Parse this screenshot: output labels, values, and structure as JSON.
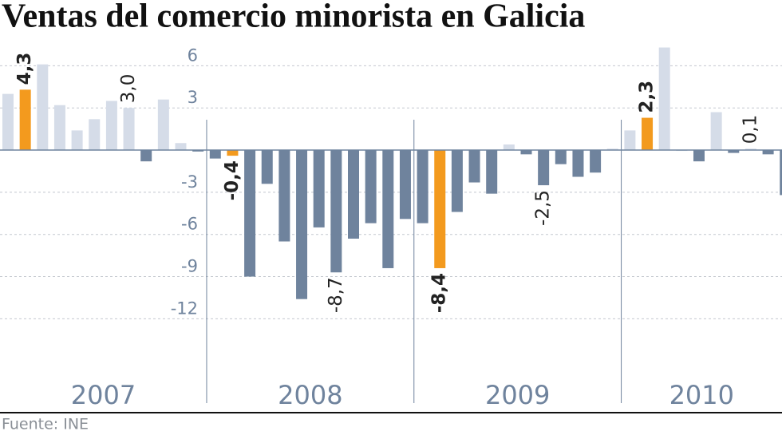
{
  "chart_data": {
    "type": "bar",
    "title": "Ventas del comercio minorista en Galicia",
    "source": "Fuente: INE",
    "categories": [
      null,
      null,
      null,
      null,
      null,
      null,
      null,
      null,
      null,
      null,
      null,
      null,
      null,
      null,
      null,
      null,
      null,
      null,
      null,
      null,
      null,
      null,
      null,
      null,
      null,
      null,
      null,
      null,
      null,
      null,
      null,
      null,
      null,
      null,
      null,
      null,
      null,
      null,
      null,
      null,
      null,
      null,
      null,
      null,
      null,
      null
    ],
    "values": [
      4.0,
      4.3,
      6.1,
      3.2,
      1.4,
      2.2,
      3.5,
      3.0,
      -0.8,
      3.6,
      0.5,
      -0.1,
      -0.6,
      -0.4,
      -9.0,
      -2.4,
      -6.5,
      -10.6,
      -5.5,
      -8.7,
      -6.3,
      -5.2,
      -8.4,
      -4.9,
      -5.2,
      -8.4,
      -4.4,
      -2.3,
      -3.1,
      0.4,
      -0.3,
      -2.5,
      -1.0,
      -1.9,
      -1.6,
      0.1,
      1.4,
      2.3,
      7.3,
      0,
      -0.8,
      2.7,
      -0.2,
      0.1,
      -0.3,
      -3.2
    ],
    "value_labels": [
      null,
      "4,3",
      null,
      null,
      null,
      null,
      null,
      "3,0",
      null,
      null,
      null,
      null,
      null,
      "-0,4",
      null,
      null,
      null,
      null,
      null,
      "-8,7",
      null,
      null,
      null,
      null,
      null,
      "-8,4",
      null,
      null,
      null,
      null,
      null,
      "-2,5",
      null,
      null,
      null,
      null,
      null,
      "2,3",
      null,
      null,
      null,
      null,
      null,
      "0,1",
      null,
      null
    ],
    "color_positive": "#d5dce8",
    "color_negative": "#6f839d",
    "highlight_color": "#f39a1e",
    "highlighted": [
      1,
      13,
      25,
      37
    ],
    "years": [
      "2007",
      "2008",
      "2009",
      "2010"
    ],
    "ylim": [
      -18,
      7.5
    ],
    "yticks": [
      6,
      3,
      -3,
      -6,
      -9,
      -12
    ],
    "grid": true
  }
}
